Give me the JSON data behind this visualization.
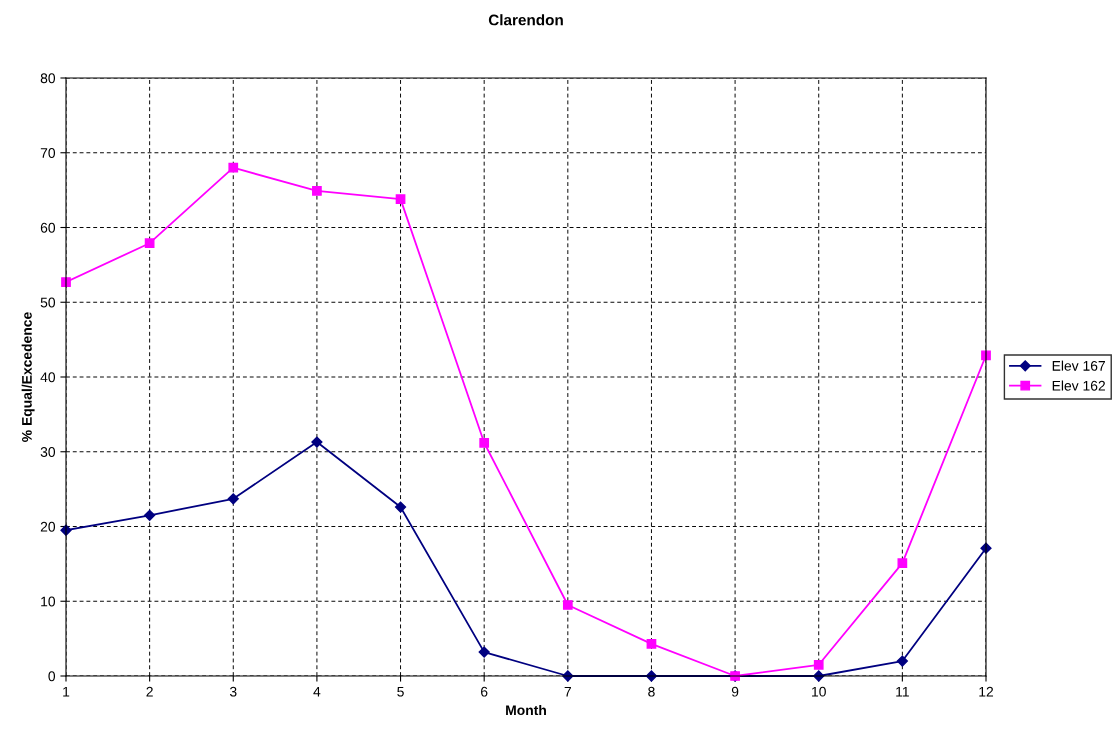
{
  "chart_data": {
    "type": "line",
    "title": "Clarendon",
    "xlabel": "Month",
    "ylabel": "% Equal/Excedence",
    "x": [
      1,
      2,
      3,
      4,
      5,
      6,
      7,
      8,
      9,
      10,
      11,
      12
    ],
    "series": [
      {
        "name": "Elev 167",
        "color": "#000080",
        "marker": "diamond",
        "values": [
          19.5,
          21.5,
          23.7,
          31.3,
          22.6,
          3.2,
          0,
          0,
          0,
          0,
          2.0,
          17.1
        ]
      },
      {
        "name": "Elev 162",
        "color": "#ff00ff",
        "marker": "square",
        "values": [
          52.7,
          57.9,
          68.0,
          64.9,
          63.8,
          31.2,
          9.5,
          4.3,
          0,
          1.5,
          15.1,
          42.9
        ]
      }
    ],
    "xlim": [
      1,
      12
    ],
    "xticks": [
      1,
      2,
      3,
      4,
      5,
      6,
      7,
      8,
      9,
      10,
      11,
      12
    ],
    "ylim": [
      0,
      80
    ],
    "yticks": [
      0,
      10,
      20,
      30,
      40,
      50,
      60,
      70,
      80
    ],
    "grid": true,
    "legend": "right",
    "line_style": "solid"
  }
}
